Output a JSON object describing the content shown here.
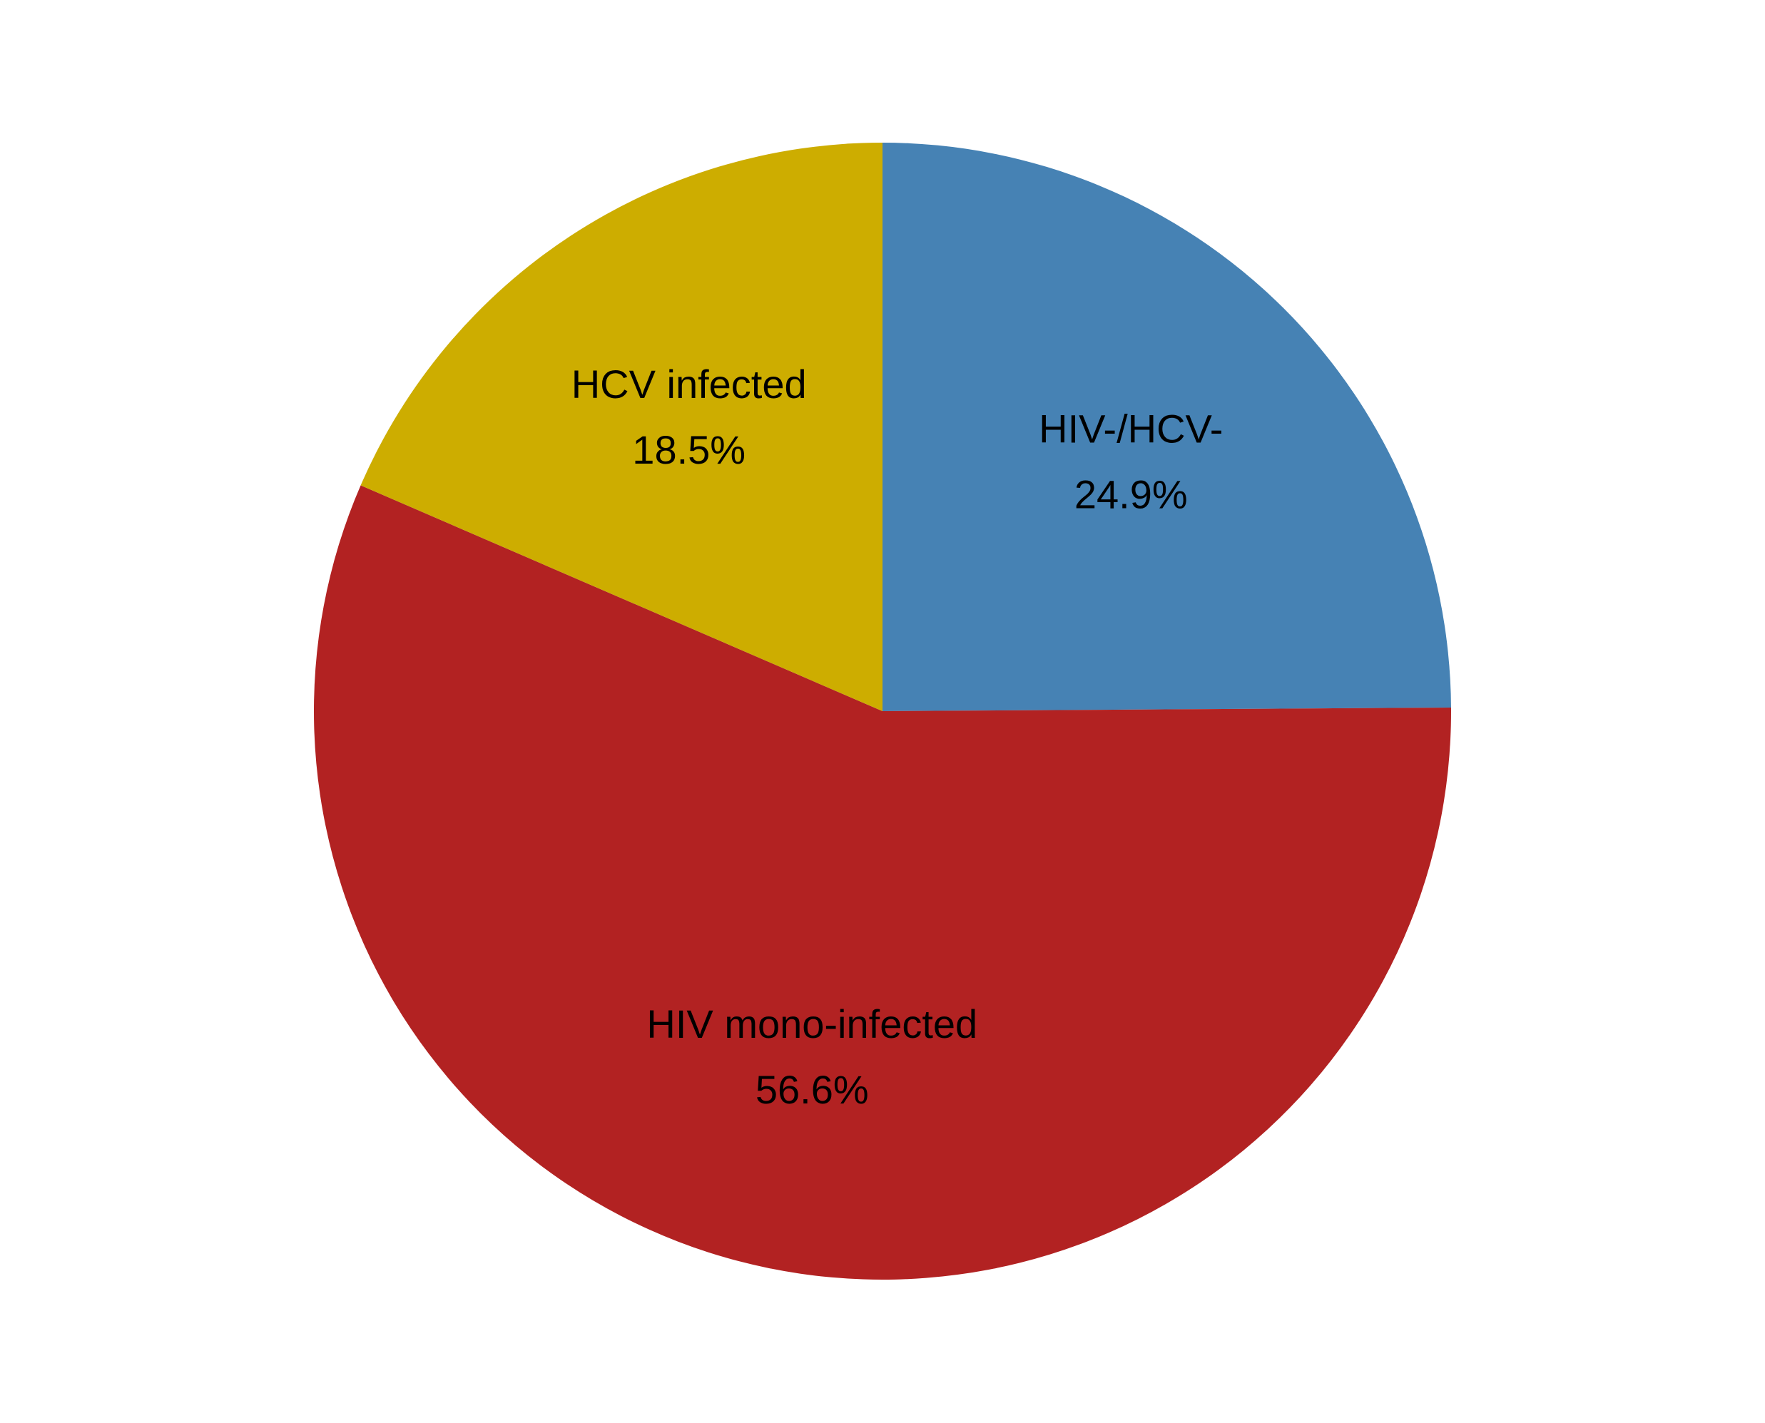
{
  "chart_data": {
    "type": "pie",
    "start_angle_deg": 0,
    "direction": "clockwise",
    "slices": [
      {
        "label": "HIV-/HCV-",
        "value": 24.9,
        "value_label": "24.9%",
        "color": "#4682B4"
      },
      {
        "label": "HIV mono-infected",
        "value": 56.6,
        "value_label": "56.6%",
        "color": "#B22222"
      },
      {
        "label": "HCV infected",
        "value": 18.5,
        "value_label": "18.5%",
        "color": "#CDAD00"
      }
    ],
    "legend": "none"
  }
}
